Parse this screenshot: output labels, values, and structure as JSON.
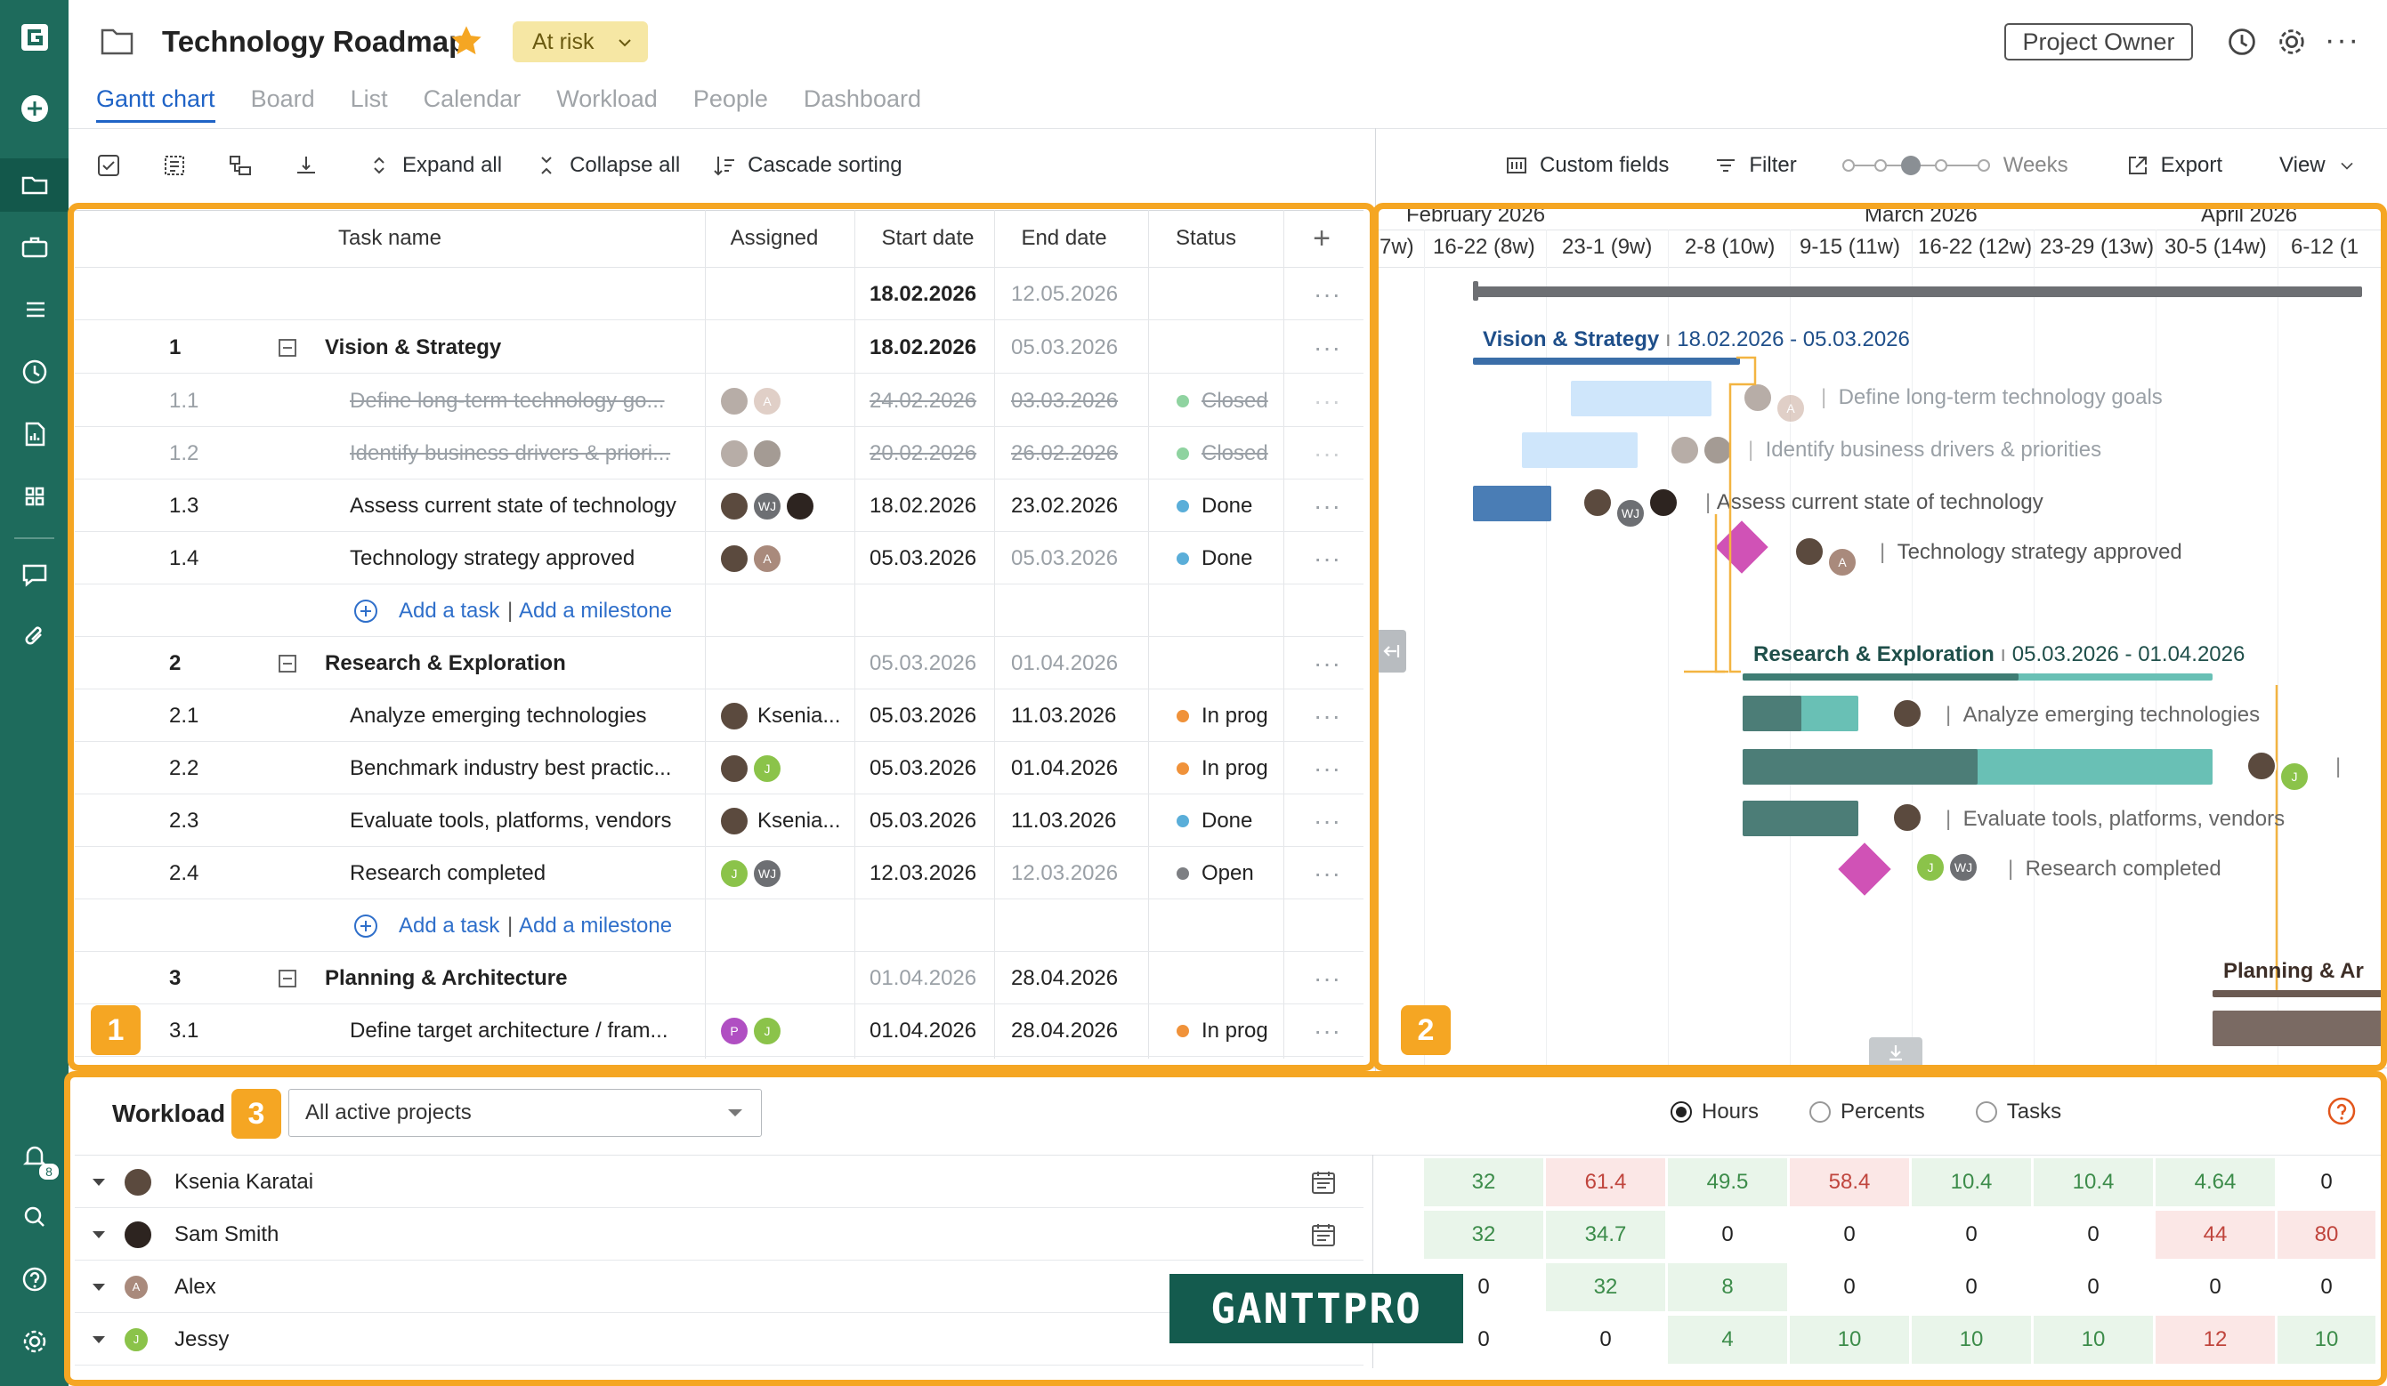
{
  "project": {
    "title": "Technology Roadmap",
    "status": "At risk",
    "role_button": "Project Owner"
  },
  "nav_tabs": [
    "Gantt chart",
    "Board",
    "List",
    "Calendar",
    "Workload",
    "People",
    "Dashboard"
  ],
  "toolbar": {
    "expand_all": "Expand all",
    "collapse_all": "Collapse all",
    "cascade_sorting": "Cascade sorting",
    "custom_fields": "Custom fields",
    "filter": "Filter",
    "zoom": "Weeks",
    "export": "Export",
    "view": "View"
  },
  "grid": {
    "columns": [
      "Task name",
      "Assigned",
      "Start date",
      "End date",
      "Status"
    ],
    "project_row": {
      "start": "18.02.2026",
      "end": "12.05.2026"
    },
    "add_task": "Add a task",
    "add_milestone": "Add a milestone",
    "rows": [
      {
        "num": "1",
        "name": "Vision & Strategy",
        "start": "18.02.2026",
        "end": "05.03.2026",
        "group": true
      },
      {
        "num": "1.1",
        "name": "Define long-term technology go...",
        "start": "24.02.2026",
        "end": "03.03.2026",
        "status": "Closed"
      },
      {
        "num": "1.2",
        "name": "Identify business drivers & priori...",
        "start": "20.02.2026",
        "end": "26.02.2026",
        "status": "Closed"
      },
      {
        "num": "1.3",
        "name": "Assess current state of technology",
        "start": "18.02.2026",
        "end": "23.02.2026",
        "status": "Done"
      },
      {
        "num": "1.4",
        "name": "Technology strategy approved",
        "start": "05.03.2026",
        "end": "05.03.2026",
        "status": "Done"
      },
      {
        "num": "2",
        "name": "Research & Exploration",
        "start": "05.03.2026",
        "end": "01.04.2026",
        "group": true
      },
      {
        "num": "2.1",
        "name": "Analyze emerging technologies",
        "assignee": "Ksenia...",
        "start": "05.03.2026",
        "end": "11.03.2026",
        "status": "In prog"
      },
      {
        "num": "2.2",
        "name": "Benchmark industry best practic...",
        "start": "05.03.2026",
        "end": "01.04.2026",
        "status": "In prog"
      },
      {
        "num": "2.3",
        "name": "Evaluate tools, platforms, vendors",
        "assignee": "Ksenia...",
        "start": "05.03.2026",
        "end": "11.03.2026",
        "status": "Done"
      },
      {
        "num": "2.4",
        "name": "Research completed",
        "start": "12.03.2026",
        "end": "12.03.2026",
        "status": "Open"
      },
      {
        "num": "3",
        "name": "Planning & Architecture",
        "start": "01.04.2026",
        "end": "28.04.2026",
        "group": true
      },
      {
        "num": "3.1",
        "name": "Define target architecture / fram...",
        "start": "01.04.2026",
        "end": "28.04.2026",
        "status": "In prog"
      }
    ]
  },
  "timeline": {
    "months": [
      "February 2026",
      "March 2026",
      "April 2026"
    ],
    "weeks": [
      "7w)",
      "16-22 (8w)",
      "23-1 (9w)",
      "2-8 (10w)",
      "9-15 (11w)",
      "16-22 (12w)",
      "23-29 (13w)",
      "30-5 (14w)",
      "6-12 (1"
    ],
    "labels": {
      "g1": "Vision & Strategy",
      "g1_dates": "18.02.2026 - 05.03.2026",
      "t11": "Define long-term technology goals",
      "t12": "Identify business drivers & priorities",
      "t13": "Assess current state of technology",
      "t14": "Technology strategy approved",
      "g2": "Research & Exploration",
      "g2_dates": "05.03.2026 - 01.04.2026",
      "t21": "Analyze emerging technologies",
      "t23": "Evaluate tools, platforms, vendors",
      "t24": "Research completed",
      "g3": "Planning & Ar"
    }
  },
  "workload": {
    "title": "Workload",
    "project_select": "All active projects",
    "modes": [
      "Hours",
      "Percents",
      "Tasks"
    ],
    "selected_mode": "Hours",
    "people": [
      {
        "name": "Ksenia Karatai",
        "values": [
          "32",
          "61.4",
          "49.5",
          "58.4",
          "10.4",
          "10.4",
          "4.64",
          "0"
        ]
      },
      {
        "name": "Sam Smith",
        "values": [
          "32",
          "34.7",
          "0",
          "0",
          "0",
          "0",
          "44",
          "80"
        ]
      },
      {
        "name": "Alex",
        "values": [
          "0",
          "32",
          "8",
          "0",
          "0",
          "0",
          "0",
          "0"
        ]
      },
      {
        "name": "Jessy",
        "values": [
          "0",
          "0",
          "4",
          "10",
          "10",
          "10",
          "12",
          "10"
        ]
      }
    ]
  },
  "callouts": [
    "1",
    "2",
    "3"
  ],
  "watermark": "GANTTPRO",
  "notification_count": "8"
}
